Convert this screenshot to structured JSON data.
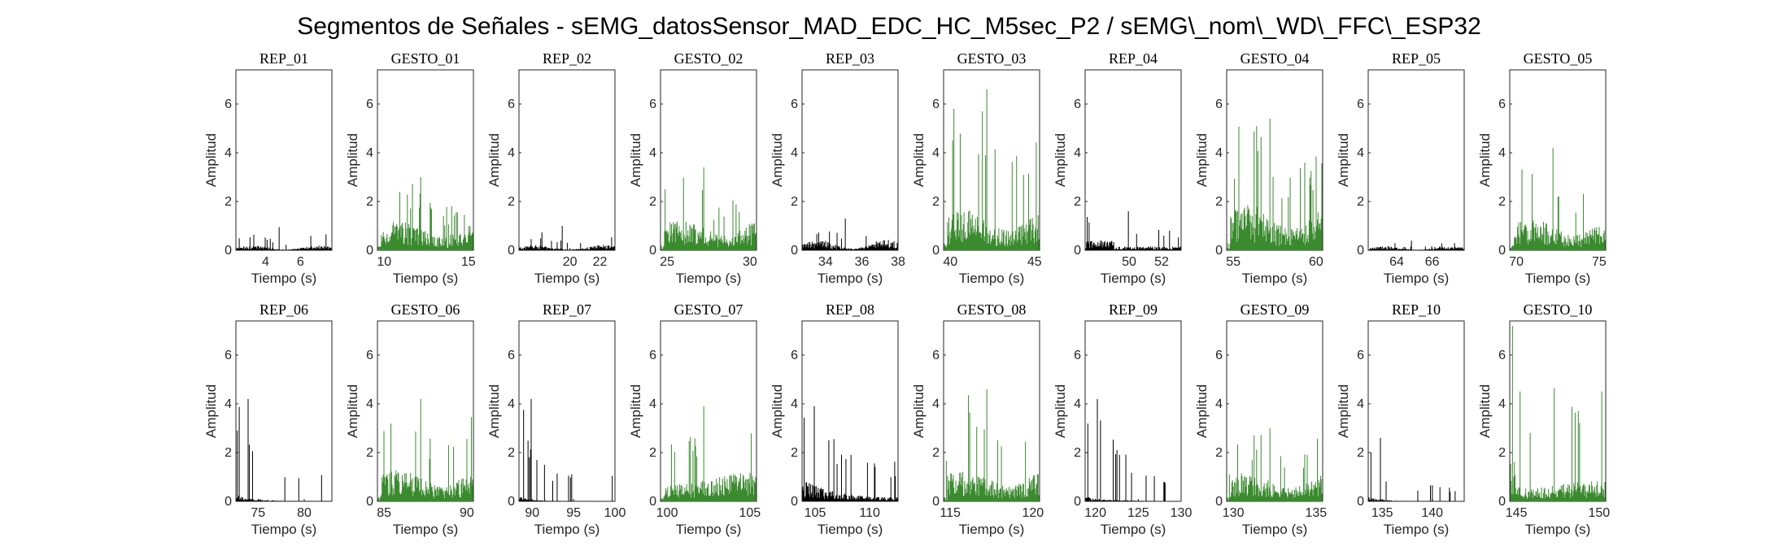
{
  "suptitle": "Segmentos de Señales - sEMG_datosSensor_MAD_EDC_HC_M5sec_P2 / sEMG\\_nom\\_WD\\_FFC\\_ESP32",
  "colors": {
    "rep": "#000000",
    "gesto": "#3a8a2e"
  },
  "chart_data": [
    {
      "type": "bar",
      "title": "REP_01",
      "xlabel": "Tiempo (s)",
      "ylabel": "Amplitud",
      "xlim": [
        2.3,
        7.8
      ],
      "ylim": [
        0,
        7.4
      ],
      "xticks": [
        4,
        6
      ],
      "yticks": [
        0,
        2,
        4,
        6
      ],
      "kind": "rep",
      "amp_base": 0.18,
      "amp_peak": 0.95,
      "profile": "flat"
    },
    {
      "type": "bar",
      "title": "GESTO_01",
      "xlabel": "Tiempo (s)",
      "ylabel": "Amplitud",
      "xlim": [
        9.6,
        15.3
      ],
      "ylim": [
        0,
        7.4
      ],
      "xticks": [
        10,
        15
      ],
      "yticks": [
        0,
        2,
        4,
        6
      ],
      "kind": "gesto",
      "amp_base": 0.9,
      "amp_peak": 3.0,
      "profile": "gesture"
    },
    {
      "type": "bar",
      "title": "REP_02",
      "xlabel": "Tiempo (s)",
      "ylabel": "Amplitud",
      "xlim": [
        16.6,
        23.0
      ],
      "ylim": [
        0,
        7.4
      ],
      "xticks": [
        20,
        22
      ],
      "yticks": [
        0,
        2,
        4,
        6
      ],
      "kind": "rep",
      "amp_base": 0.2,
      "amp_peak": 1.0,
      "profile": "flat"
    },
    {
      "type": "bar",
      "title": "GESTO_02",
      "xlabel": "Tiempo (s)",
      "ylabel": "Amplitud",
      "xlim": [
        24.6,
        30.4
      ],
      "ylim": [
        0,
        7.4
      ],
      "xticks": [
        25,
        30
      ],
      "yticks": [
        0,
        2,
        4,
        6
      ],
      "kind": "gesto",
      "amp_base": 1.0,
      "amp_peak": 3.4,
      "profile": "gesture"
    },
    {
      "type": "bar",
      "title": "REP_03",
      "xlabel": "Tiempo (s)",
      "ylabel": "Amplitud",
      "xlim": [
        32.7,
        38.0
      ],
      "ylim": [
        0,
        7.4
      ],
      "xticks": [
        34,
        36,
        38
      ],
      "yticks": [
        0,
        2,
        4,
        6
      ],
      "kind": "rep",
      "amp_base": 0.4,
      "amp_peak": 1.3,
      "profile": "flat"
    },
    {
      "type": "bar",
      "title": "GESTO_03",
      "xlabel": "Tiempo (s)",
      "ylabel": "Amplitud",
      "xlim": [
        39.6,
        45.3
      ],
      "ylim": [
        0,
        7.4
      ],
      "xticks": [
        40,
        45
      ],
      "yticks": [
        0,
        2,
        4,
        6
      ],
      "kind": "gesto",
      "amp_base": 1.3,
      "amp_peak": 6.6,
      "profile": "gesture"
    },
    {
      "type": "bar",
      "title": "REP_04",
      "xlabel": "Tiempo (s)",
      "ylabel": "Amplitud",
      "xlim": [
        47.3,
        53.2
      ],
      "ylim": [
        0,
        7.4
      ],
      "xticks": [
        50,
        52
      ],
      "yticks": [
        0,
        2,
        4,
        6
      ],
      "kind": "rep",
      "amp_base": 0.25,
      "amp_peak": 1.6,
      "profile": "early"
    },
    {
      "type": "bar",
      "title": "GESTO_04",
      "xlabel": "Tiempo (s)",
      "ylabel": "Amplitud",
      "xlim": [
        54.6,
        60.4
      ],
      "ylim": [
        0,
        7.4
      ],
      "xticks": [
        55,
        60
      ],
      "yticks": [
        0,
        2,
        4,
        6
      ],
      "kind": "gesto",
      "amp_base": 1.4,
      "amp_peak": 5.4,
      "profile": "gesture"
    },
    {
      "type": "bar",
      "title": "REP_05",
      "xlabel": "Tiempo (s)",
      "ylabel": "Amplitud",
      "xlim": [
        62.4,
        67.8
      ],
      "ylim": [
        0,
        7.4
      ],
      "xticks": [
        64,
        66
      ],
      "yticks": [
        0,
        2,
        4,
        6
      ],
      "kind": "rep",
      "amp_base": 0.15,
      "amp_peak": 0.4,
      "profile": "flat"
    },
    {
      "type": "bar",
      "title": "GESTO_05",
      "xlabel": "Tiempo (s)",
      "ylabel": "Amplitud",
      "xlim": [
        69.6,
        75.4
      ],
      "ylim": [
        0,
        7.4
      ],
      "xticks": [
        70,
        75
      ],
      "yticks": [
        0,
        2,
        4,
        6
      ],
      "kind": "gesto",
      "amp_base": 1.0,
      "amp_peak": 4.2,
      "profile": "gesture"
    },
    {
      "type": "bar",
      "title": "REP_06",
      "xlabel": "Tiempo (s)",
      "ylabel": "Amplitud",
      "xlim": [
        72.6,
        83.0
      ],
      "ylim": [
        0,
        7.4
      ],
      "xticks": [
        75,
        80
      ],
      "yticks": [
        0,
        2,
        4,
        6
      ],
      "kind": "rep",
      "amp_base": 0.15,
      "amp_peak": 4.2,
      "profile": "decay"
    },
    {
      "type": "bar",
      "title": "GESTO_06",
      "xlabel": "Tiempo (s)",
      "ylabel": "Amplitud",
      "xlim": [
        84.6,
        90.4
      ],
      "ylim": [
        0,
        7.4
      ],
      "xticks": [
        85,
        90
      ],
      "yticks": [
        0,
        2,
        4,
        6
      ],
      "kind": "gesto",
      "amp_base": 1.0,
      "amp_peak": 4.2,
      "profile": "gesture"
    },
    {
      "type": "bar",
      "title": "REP_07",
      "xlabel": "Tiempo (s)",
      "ylabel": "Amplitud",
      "xlim": [
        88.4,
        100.0
      ],
      "ylim": [
        0,
        7.4
      ],
      "xticks": [
        90,
        95,
        100
      ],
      "yticks": [
        0,
        2,
        4,
        6
      ],
      "kind": "rep",
      "amp_base": 0.1,
      "amp_peak": 4.2,
      "profile": "decay_short"
    },
    {
      "type": "bar",
      "title": "GESTO_07",
      "xlabel": "Tiempo (s)",
      "ylabel": "Amplitud",
      "xlim": [
        99.6,
        105.4
      ],
      "ylim": [
        0,
        7.4
      ],
      "xticks": [
        100,
        105
      ],
      "yticks": [
        0,
        2,
        4,
        6
      ],
      "kind": "gesto",
      "amp_base": 0.9,
      "amp_peak": 3.9,
      "profile": "rising"
    },
    {
      "type": "bar",
      "title": "REP_08",
      "xlabel": "Tiempo (s)",
      "ylabel": "Amplitud",
      "xlim": [
        103.8,
        112.6
      ],
      "ylim": [
        0,
        7.4
      ],
      "xticks": [
        105,
        110
      ],
      "yticks": [
        0,
        2,
        4,
        6
      ],
      "kind": "rep",
      "amp_base": 0.5,
      "amp_peak": 3.9,
      "profile": "decay_slow"
    },
    {
      "type": "bar",
      "title": "GESTO_08",
      "xlabel": "Tiempo (s)",
      "ylabel": "Amplitud",
      "xlim": [
        114.6,
        120.4
      ],
      "ylim": [
        0,
        7.4
      ],
      "xticks": [
        115,
        120
      ],
      "yticks": [
        0,
        2,
        4,
        6
      ],
      "kind": "gesto",
      "amp_base": 1.0,
      "amp_peak": 4.6,
      "profile": "gesture"
    },
    {
      "type": "bar",
      "title": "REP_09",
      "xlabel": "Tiempo (s)",
      "ylabel": "Amplitud",
      "xlim": [
        118.8,
        130.0
      ],
      "ylim": [
        0,
        7.4
      ],
      "xticks": [
        120,
        125,
        130
      ],
      "yticks": [
        0,
        2,
        4,
        6
      ],
      "kind": "rep",
      "amp_base": 0.1,
      "amp_peak": 4.2,
      "profile": "decay_mid"
    },
    {
      "type": "bar",
      "title": "GESTO_09",
      "xlabel": "Tiempo (s)",
      "ylabel": "Amplitud",
      "xlim": [
        129.6,
        135.4
      ],
      "ylim": [
        0,
        7.4
      ],
      "xticks": [
        130,
        135
      ],
      "yticks": [
        0,
        2,
        4,
        6
      ],
      "kind": "gesto",
      "amp_base": 0.9,
      "amp_peak": 3.0,
      "profile": "gesture"
    },
    {
      "type": "bar",
      "title": "REP_10",
      "xlabel": "Tiempo (s)",
      "ylabel": "Amplitud",
      "xlim": [
        133.6,
        143.2
      ],
      "ylim": [
        0,
        7.4
      ],
      "xticks": [
        135,
        140
      ],
      "yticks": [
        0,
        2,
        4,
        6
      ],
      "kind": "rep",
      "amp_base": 0.1,
      "amp_peak": 2.6,
      "profile": "decay_short"
    },
    {
      "type": "bar",
      "title": "GESTO_10",
      "xlabel": "Tiempo (s)",
      "ylabel": "Amplitud",
      "xlim": [
        144.6,
        150.4
      ],
      "ylim": [
        0,
        7.4
      ],
      "xticks": [
        145,
        150
      ],
      "yticks": [
        0,
        2,
        4,
        6
      ],
      "kind": "gesto",
      "amp_base": 0.9,
      "amp_peak": 7.2,
      "profile": "spike_start"
    }
  ]
}
